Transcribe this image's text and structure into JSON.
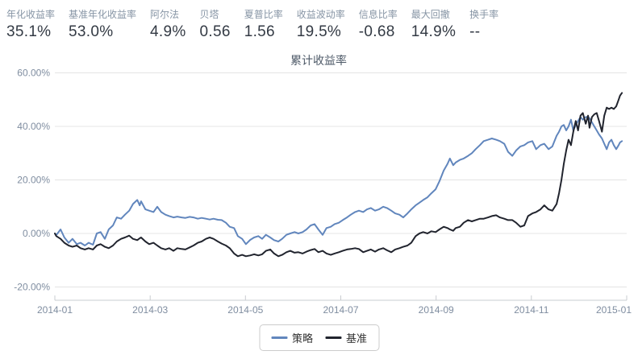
{
  "metrics": [
    {
      "label": "年化收益率",
      "value": "35.1%"
    },
    {
      "label": "基准年化收益率",
      "value": "53.0%"
    },
    {
      "label": "阿尔法",
      "value": "4.9%"
    },
    {
      "label": "贝塔",
      "value": "0.56"
    },
    {
      "label": "夏普比率",
      "value": "1.56"
    },
    {
      "label": "收益波动率",
      "value": "19.5%"
    },
    {
      "label": "信息比率",
      "value": "-0.68"
    },
    {
      "label": "最大回撤",
      "value": "14.9%"
    },
    {
      "label": "换手率",
      "value": "--"
    }
  ],
  "chart_data": {
    "type": "line",
    "title": "累计收益率",
    "xlabel": "",
    "ylabel": "",
    "x_unit": "months since 2014-01",
    "xlim_months": [
      0,
      12
    ],
    "ylim": [
      -25,
      62
    ],
    "grid": true,
    "legend_position": "bottom",
    "x_ticks": [
      {
        "t": 0,
        "label": "2014-01"
      },
      {
        "t": 2,
        "label": "2014-03"
      },
      {
        "t": 4,
        "label": "2014-05"
      },
      {
        "t": 6,
        "label": "2014-07"
      },
      {
        "t": 8,
        "label": "2014-09"
      },
      {
        "t": 10,
        "label": "2014-11"
      },
      {
        "t": 12,
        "label": "2015-01"
      }
    ],
    "y_ticks": [
      {
        "v": 60,
        "label": "60.00%"
      },
      {
        "v": 40,
        "label": "40.00%"
      },
      {
        "v": 20,
        "label": "20.00%"
      },
      {
        "v": 0,
        "label": "0.00%"
      },
      {
        "v": -20,
        "label": "-20.00%"
      }
    ],
    "t": [
      0,
      0.03,
      0.12,
      0.2,
      0.29,
      0.37,
      0.46,
      0.54,
      0.63,
      0.71,
      0.8,
      0.88,
      0.96,
      1.05,
      1.13,
      1.22,
      1.3,
      1.39,
      1.47,
      1.56,
      1.64,
      1.73,
      1.78,
      1.81,
      1.9,
      1.98,
      2.07,
      2.15,
      2.23,
      2.32,
      2.4,
      2.49,
      2.57,
      2.66,
      2.74,
      2.83,
      2.91,
      3,
      3.08,
      3.17,
      3.25,
      3.33,
      3.42,
      3.5,
      3.59,
      3.67,
      3.76,
      3.84,
      3.93,
      4.01,
      4.1,
      4.18,
      4.27,
      4.35,
      4.43,
      4.52,
      4.6,
      4.69,
      4.77,
      4.86,
      4.94,
      5.03,
      5.11,
      5.2,
      5.28,
      5.37,
      5.45,
      5.53,
      5.62,
      5.7,
      5.79,
      5.87,
      5.96,
      6.04,
      6.13,
      6.21,
      6.3,
      6.38,
      6.47,
      6.55,
      6.63,
      6.72,
      6.8,
      6.89,
      6.97,
      7.06,
      7.14,
      7.23,
      7.31,
      7.4,
      7.48,
      7.57,
      7.65,
      7.73,
      7.82,
      7.9,
      7.99,
      8.07,
      8.16,
      8.24,
      8.29,
      8.36,
      8.41,
      8.5,
      8.58,
      8.67,
      8.75,
      8.83,
      8.92,
      9,
      9.09,
      9.17,
      9.26,
      9.34,
      9.43,
      9.51,
      9.6,
      9.68,
      9.77,
      9.85,
      9.93,
      10.02,
      10.1,
      10.19,
      10.27,
      10.36,
      10.44,
      10.53,
      10.58,
      10.63,
      10.68,
      10.73,
      10.78,
      10.83,
      10.88,
      10.93,
      10.98,
      11.03,
      11.08,
      11.14,
      11.19,
      11.22,
      11.27,
      11.32,
      11.37,
      11.42,
      11.48,
      11.53,
      11.58,
      11.63,
      11.68,
      11.73,
      11.78,
      11.83,
      11.86,
      11.9
    ],
    "series": [
      {
        "name": "策略",
        "color": "#6186bd",
        "values": [
          0,
          -0.6,
          1.5,
          -1.5,
          -3.5,
          -2,
          -4,
          -3.5,
          -4.5,
          -3.5,
          -4.2,
          0,
          0.5,
          -2,
          1.5,
          3,
          6,
          5.5,
          7,
          8.5,
          11,
          12.5,
          10.5,
          12,
          9,
          8.5,
          8,
          10,
          8,
          7,
          6.5,
          6,
          6.3,
          6,
          5.8,
          6.2,
          6,
          5.5,
          5.8,
          5.5,
          5.2,
          5.5,
          5.1,
          5,
          4,
          2.5,
          2,
          -1,
          -2,
          -4,
          -2.4,
          -1.5,
          -1,
          -2,
          -0.5,
          -1.5,
          -2.5,
          -3,
          -2,
          -0.5,
          0,
          0.5,
          0,
          0.5,
          1.5,
          3,
          3.5,
          1.5,
          -0.5,
          2,
          2.5,
          3.5,
          4,
          5,
          6,
          7,
          8,
          8.5,
          8,
          9,
          9.5,
          8.5,
          9,
          10,
          9.5,
          8.5,
          7.5,
          7,
          6,
          7.5,
          9,
          10.5,
          11.5,
          12.5,
          13.5,
          15,
          16.5,
          19.5,
          23.5,
          26,
          28,
          25.5,
          26.5,
          27.5,
          28,
          29,
          30,
          31.5,
          33,
          34.5,
          35,
          35.5,
          35,
          34.5,
          33.5,
          30.5,
          29,
          31,
          32.5,
          33,
          34,
          34.5,
          31.5,
          33,
          33.5,
          31.5,
          32.5,
          36.5,
          38,
          40,
          40.5,
          38.5,
          40,
          42.5,
          38.5,
          40.5,
          42,
          43.5,
          42.5,
          43.5,
          43.5,
          43,
          41.5,
          40,
          38.5,
          37,
          35.5,
          33.5,
          31.5,
          34,
          35,
          33,
          31.5,
          33,
          34,
          34.5
        ]
      },
      {
        "name": "基准",
        "color": "#21242e",
        "values": [
          0,
          -1,
          -2,
          -3.5,
          -4.5,
          -5,
          -4.5,
          -5.5,
          -6,
          -5.5,
          -6,
          -4.5,
          -4,
          -5,
          -5.5,
          -4.5,
          -3,
          -2,
          -1.5,
          -0.8,
          -2,
          -2.5,
          -1.8,
          -1.5,
          -3,
          -4,
          -3.5,
          -4.5,
          -5.5,
          -6,
          -5.5,
          -6.5,
          -5.5,
          -5.8,
          -6,
          -5.2,
          -4.5,
          -3.5,
          -3,
          -2,
          -1.5,
          -2,
          -3,
          -3.8,
          -4.5,
          -5.5,
          -7.5,
          -8.5,
          -8,
          -8.5,
          -8.2,
          -7.8,
          -8.2,
          -7.8,
          -6.5,
          -6,
          -7.5,
          -8.5,
          -8,
          -7,
          -6.5,
          -7.2,
          -7,
          -7.5,
          -6.8,
          -6.2,
          -5.8,
          -7,
          -6.5,
          -7.5,
          -8,
          -7.5,
          -7,
          -6.5,
          -6,
          -5.8,
          -5.5,
          -5.8,
          -7,
          -6.5,
          -6,
          -6.8,
          -6,
          -5.5,
          -6.3,
          -7,
          -6,
          -5.5,
          -5,
          -4.5,
          -3.5,
          -1,
          0,
          0.5,
          0,
          0.8,
          0.5,
          1.5,
          2.5,
          2,
          1.5,
          1,
          2,
          2.5,
          4,
          5,
          4.5,
          5,
          5.5,
          5.5,
          6,
          6.5,
          6.8,
          6,
          5.5,
          5,
          5,
          4,
          2.5,
          3,
          6.5,
          7.5,
          8,
          9,
          10.5,
          9,
          8.5,
          11,
          15,
          20,
          26,
          31,
          35,
          33,
          38,
          42,
          38.5,
          44,
          45,
          41,
          44,
          39.5,
          43.5,
          44.5,
          45,
          42,
          38,
          44,
          47,
          46.5,
          47,
          46.5,
          47.5,
          50,
          51.5,
          52.5
        ]
      }
    ]
  }
}
